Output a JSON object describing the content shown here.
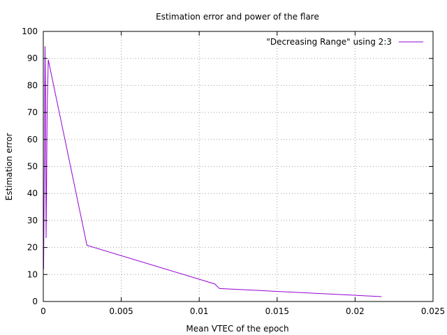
{
  "chart_data": {
    "type": "line",
    "title": "Estimation error and power of the flare",
    "xlabel": "Mean VTEC of the epoch",
    "ylabel": "Estimation error",
    "xlim": [
      0,
      0.025
    ],
    "ylim": [
      0,
      100
    ],
    "x_ticks": [
      0,
      0.005,
      0.01,
      0.015,
      0.02,
      0.025
    ],
    "x_tick_labels": [
      "0",
      "0.005",
      "0.01",
      "0.015",
      "0.02",
      "0.025"
    ],
    "y_ticks": [
      0,
      10,
      20,
      30,
      40,
      50,
      60,
      70,
      80,
      90,
      100
    ],
    "y_tick_labels": [
      "0",
      "10",
      "20",
      "30",
      "40",
      "50",
      "60",
      "70",
      "80",
      "90",
      "100"
    ],
    "grid": true,
    "legend_position": "top-right",
    "series": [
      {
        "name": "\"Decreasing Range\" using 2:3",
        "color": "#9400d3",
        "points": [
          {
            "x": 2e-05,
            "y": 12
          },
          {
            "x": 5e-05,
            "y": 38
          },
          {
            "x": 8e-05,
            "y": 62
          },
          {
            "x": 0.00011,
            "y": 94.5
          },
          {
            "x": 0.00014,
            "y": 78
          },
          {
            "x": 0.00018,
            "y": 23.5
          },
          {
            "x": 0.00025,
            "y": 72
          },
          {
            "x": 0.00032,
            "y": 89.5
          },
          {
            "x": 0.0028,
            "y": 20.8
          },
          {
            "x": 0.011,
            "y": 6.5
          },
          {
            "x": 0.0113,
            "y": 4.8
          },
          {
            "x": 0.0217,
            "y": 1.8
          }
        ]
      }
    ]
  }
}
